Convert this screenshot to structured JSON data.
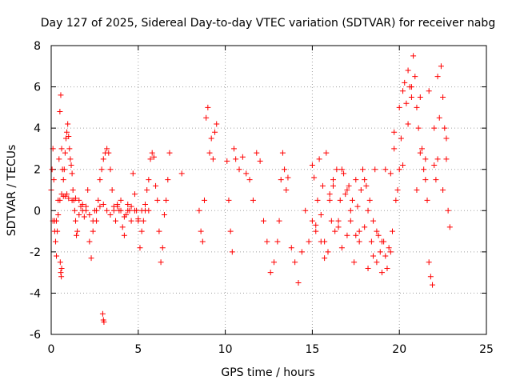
{
  "chart_data": {
    "type": "scatter",
    "title": "Day 127 of 2025, Sidereal Day-to-day VTEC variation (SDTVAR) for receiver nabg",
    "xlabel": "GPS time / hours",
    "ylabel": "SDTVAR / TECUs",
    "xlim": [
      0,
      25
    ],
    "ylim": [
      -6,
      8
    ],
    "xticks": [
      0,
      5,
      10,
      15,
      20,
      25
    ],
    "yticks": [
      -6,
      -4,
      -2,
      0,
      2,
      4,
      6,
      8
    ],
    "grid": true,
    "marker": "plus",
    "color": "#ff0000",
    "series": [
      {
        "name": "SDTVAR",
        "x": [
          0.0,
          0.05,
          0.1,
          0.15,
          0.2,
          0.25,
          0.3,
          0.35,
          0.4,
          0.45,
          0.5,
          0.55,
          0.6,
          0.65,
          0.7,
          0.75,
          0.8,
          0.85,
          0.9,
          0.95,
          1.0,
          1.05,
          1.1,
          1.15,
          1.2,
          1.25,
          1.3,
          1.35,
          1.4,
          1.45,
          1.5,
          1.6,
          1.7,
          1.8,
          1.9,
          2.0,
          2.1,
          2.2,
          2.3,
          2.4,
          2.5,
          2.6,
          2.7,
          2.8,
          2.9,
          3.0,
          3.1,
          3.2,
          3.3,
          3.4,
          3.5,
          3.6,
          3.7,
          3.8,
          3.9,
          4.0,
          4.1,
          4.2,
          4.3,
          4.4,
          4.5,
          4.6,
          4.7,
          4.8,
          4.9,
          5.0,
          5.1,
          5.2,
          5.3,
          5.4,
          5.5,
          5.6,
          5.7,
          5.8,
          5.9,
          6.0,
          6.1,
          6.2,
          6.3,
          6.4,
          6.5,
          6.6,
          6.7,
          6.8,
          0.1,
          0.2,
          0.3,
          0.4,
          0.5,
          0.6,
          0.7,
          0.8,
          0.9,
          1.0,
          1.2,
          1.4,
          1.6,
          1.8,
          2.0,
          2.2,
          2.4,
          2.6,
          2.8,
          3.0,
          3.2,
          3.4,
          3.6,
          3.8,
          4.0,
          4.2,
          4.4,
          4.6,
          4.8,
          5.0,
          5.2,
          5.4,
          5.6,
          0.52,
          0.55,
          0.58,
          0.6,
          2.96,
          3.0,
          3.03,
          7.5,
          8.5,
          8.6,
          8.7,
          8.8,
          8.9,
          9.0,
          9.1,
          9.2,
          9.3,
          9.4,
          9.5,
          10.1,
          10.2,
          10.3,
          10.4,
          10.5,
          10.6,
          10.8,
          11.0,
          11.2,
          11.4,
          11.6,
          11.8,
          12.0,
          12.2,
          12.4,
          12.6,
          12.8,
          13.0,
          13.1,
          13.2,
          13.3,
          13.4,
          13.5,
          13.6,
          13.8,
          14.0,
          14.2,
          14.4,
          14.6,
          14.8,
          15.0,
          15.1,
          15.2,
          15.3,
          15.4,
          15.5,
          15.6,
          15.7,
          15.8,
          15.9,
          16.0,
          16.1,
          16.2,
          16.3,
          16.4,
          16.5,
          16.6,
          16.7,
          16.8,
          16.9,
          17.0,
          17.1,
          17.2,
          17.3,
          17.4,
          17.5,
          17.6,
          17.7,
          17.8,
          17.9,
          18.0,
          18.1,
          18.2,
          18.3,
          18.4,
          18.5,
          18.6,
          18.7,
          18.8,
          18.9,
          19.0,
          19.1,
          19.2,
          19.3,
          19.4,
          19.5,
          19.6,
          19.7,
          19.8,
          19.9,
          20.0,
          20.1,
          20.2,
          20.3,
          20.4,
          20.5,
          20.6,
          20.7,
          20.8,
          20.9,
          21.0,
          21.1,
          21.2,
          21.3,
          21.4,
          21.5,
          21.6,
          21.7,
          21.8,
          21.9,
          22.0,
          22.1,
          22.2,
          22.3,
          22.4,
          22.5,
          22.6,
          22.7,
          22.8,
          22.9,
          15.0,
          15.5,
          16.0,
          16.5,
          17.0,
          17.5,
          18.0,
          18.5,
          19.0,
          19.5,
          20.0,
          20.5,
          21.0,
          21.5,
          22.0,
          22.5,
          15.2,
          15.7,
          16.2,
          16.7,
          17.2,
          17.7,
          18.2,
          18.7,
          19.2,
          19.7,
          20.2,
          20.7,
          21.2,
          21.7,
          22.2,
          22.7
        ],
        "y": [
          1.0,
          2.0,
          3.0,
          1.5,
          -0.5,
          -1.5,
          -2.2,
          -1.0,
          0.5,
          2.5,
          4.8,
          5.6,
          3.0,
          2.0,
          1.5,
          2.0,
          2.8,
          3.5,
          3.8,
          4.2,
          3.6,
          3.0,
          2.5,
          2.2,
          1.8,
          1.0,
          0.5,
          0.0,
          -0.5,
          -1.2,
          -1.0,
          -0.2,
          0.2,
          0.0,
          -0.3,
          0.0,
          1.0,
          -1.5,
          -2.3,
          -1.0,
          0.0,
          -0.5,
          0.5,
          1.5,
          2.0,
          2.5,
          2.8,
          3.0,
          2.8,
          2.0,
          1.0,
          0.0,
          -0.5,
          0.2,
          0.0,
          0.5,
          -0.8,
          -1.2,
          -0.2,
          0.3,
          0.0,
          -0.5,
          1.8,
          0.8,
          0.0,
          -0.5,
          -1.8,
          -1.0,
          -0.5,
          0.0,
          1.0,
          1.5,
          2.5,
          2.8,
          2.6,
          1.2,
          0.5,
          -1.0,
          -2.5,
          -1.8,
          -0.2,
          0.5,
          1.5,
          2.8,
          -0.5,
          -1.0,
          -0.5,
          -0.2,
          0.5,
          0.8,
          0.7,
          0.7,
          0.8,
          0.6,
          0.5,
          0.6,
          0.5,
          0.3,
          0.2,
          -0.2,
          -0.5,
          0.0,
          0.2,
          0.3,
          0.0,
          -0.2,
          0.2,
          0.3,
          0.0,
          -0.3,
          0.0,
          0.2,
          0.0,
          -0.4,
          0.0,
          0.3,
          0.0,
          -2.5,
          -3.0,
          -3.2,
          -2.8,
          -5.0,
          -5.3,
          -5.4,
          1.8,
          0.0,
          -1.0,
          -1.5,
          0.5,
          4.5,
          5.0,
          2.8,
          3.5,
          2.5,
          3.8,
          4.2,
          2.4,
          0.5,
          -1.0,
          -2.0,
          3.0,
          2.5,
          2.0,
          2.6,
          1.8,
          1.5,
          0.5,
          2.8,
          2.4,
          -0.5,
          -1.5,
          -3.0,
          -2.5,
          -1.5,
          -0.5,
          1.5,
          2.8,
          2.0,
          1.0,
          1.6,
          -1.8,
          -2.5,
          -3.5,
          -2.0,
          0.0,
          -1.5,
          2.2,
          1.6,
          -1.0,
          0.5,
          2.5,
          -0.2,
          1.2,
          -1.5,
          2.8,
          -2.0,
          0.8,
          -0.5,
          1.5,
          -1.0,
          2.0,
          -0.5,
          0.5,
          -1.8,
          1.8,
          0.8,
          -1.2,
          1.2,
          -0.5,
          0.5,
          -2.5,
          1.5,
          0.2,
          -1.0,
          1.0,
          2.0,
          -0.8,
          1.2,
          0.0,
          0.5,
          -1.5,
          -0.5,
          2.0,
          -2.5,
          -1.2,
          -2.0,
          -3.0,
          -1.5,
          -2.2,
          -2.8,
          -1.8,
          -2.0,
          -1.0,
          3.0,
          0.5,
          1.0,
          2.0,
          3.5,
          5.8,
          6.2,
          5.2,
          6.8,
          6.0,
          5.5,
          7.5,
          6.5,
          5.0,
          4.0,
          5.5,
          3.0,
          2.0,
          1.5,
          0.5,
          -2.5,
          -3.2,
          -3.6,
          2.2,
          1.5,
          2.5,
          4.5,
          7.0,
          5.5,
          4.0,
          2.5,
          0.0,
          -0.8,
          -0.5,
          -1.5,
          0.5,
          -0.8,
          1.0,
          -1.2,
          1.5,
          -2.2,
          -1.5,
          1.8,
          5.0,
          4.2,
          1.0,
          2.5,
          4.0,
          1.0,
          -0.7,
          -2.3,
          1.2,
          2.0,
          0.0,
          -1.5,
          -2.8,
          -1.0,
          2.0,
          3.8,
          2.2,
          6.0,
          2.8,
          5.8,
          6.5,
          3.5
        ]
      }
    ]
  }
}
